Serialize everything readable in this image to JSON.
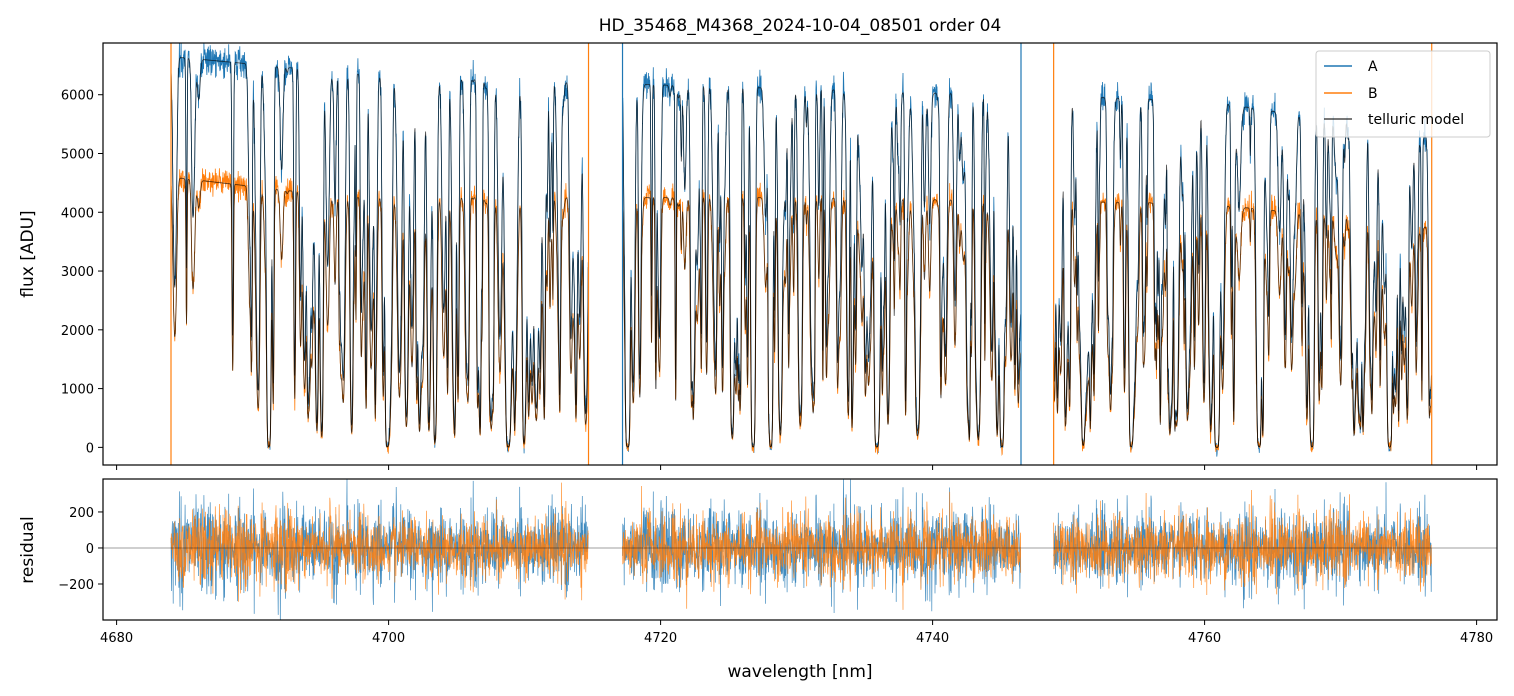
{
  "chart_data": {
    "type": "line",
    "title": "HD_35468_M4368_2024-10-04_08501  order 04",
    "xlabel": "wavelength [nm]",
    "top_panel": {
      "ylabel": "flux [ADU]",
      "ylim": [
        -300,
        6880
      ],
      "yticks": [
        0,
        1000,
        2000,
        3000,
        4000,
        5000,
        6000
      ],
      "ytick_labels": [
        "0",
        "1000",
        "2000",
        "3000",
        "4000",
        "5000",
        "6000"
      ]
    },
    "bottom_panel": {
      "ylabel": "residual",
      "ylim": [
        -400,
        383
      ],
      "yticks": [
        -200,
        0,
        200
      ],
      "ytick_labels": [
        "−200",
        "0",
        "200"
      ],
      "zero_line": true
    },
    "xlim": [
      4679.0,
      4781.5
    ],
    "xticks": [
      4680,
      4700,
      4720,
      4740,
      4760,
      4780
    ],
    "xtick_labels": [
      "4680",
      "4700",
      "4720",
      "4740",
      "4760",
      "4780"
    ],
    "segments": [
      [
        4684.0,
        4714.7
      ],
      [
        4717.2,
        4746.5
      ],
      [
        4748.9,
        4776.7
      ]
    ],
    "series": [
      {
        "name": "A",
        "color": "#1f77b4",
        "continuum": [
          [
            4684,
            6650
          ],
          [
            4700,
            6300
          ],
          [
            4730,
            6100
          ],
          [
            4760,
            5900
          ],
          [
            4776.7,
            5300
          ]
        ],
        "residual_sigma": 110
      },
      {
        "name": "B",
        "color": "#ff7f0e",
        "continuum": [
          [
            4684,
            4600
          ],
          [
            4697,
            4250
          ],
          [
            4730,
            4250
          ],
          [
            4760,
            4150
          ],
          [
            4776.7,
            3750
          ]
        ],
        "residual_sigma": 95
      },
      {
        "name": "telluric model",
        "color": "#000000"
      }
    ],
    "deep_lines_nm": [
      4691.2,
      4699.9,
      4708.8,
      4717.6,
      4726.8,
      4728.1,
      4735.9,
      4745.1,
      4754.6,
      4760.9,
      4764.0,
      4767.9,
      4773.6
    ],
    "legend": {
      "placement": "top-right",
      "entries": [
        "A",
        "B",
        "telluric model"
      ]
    }
  }
}
